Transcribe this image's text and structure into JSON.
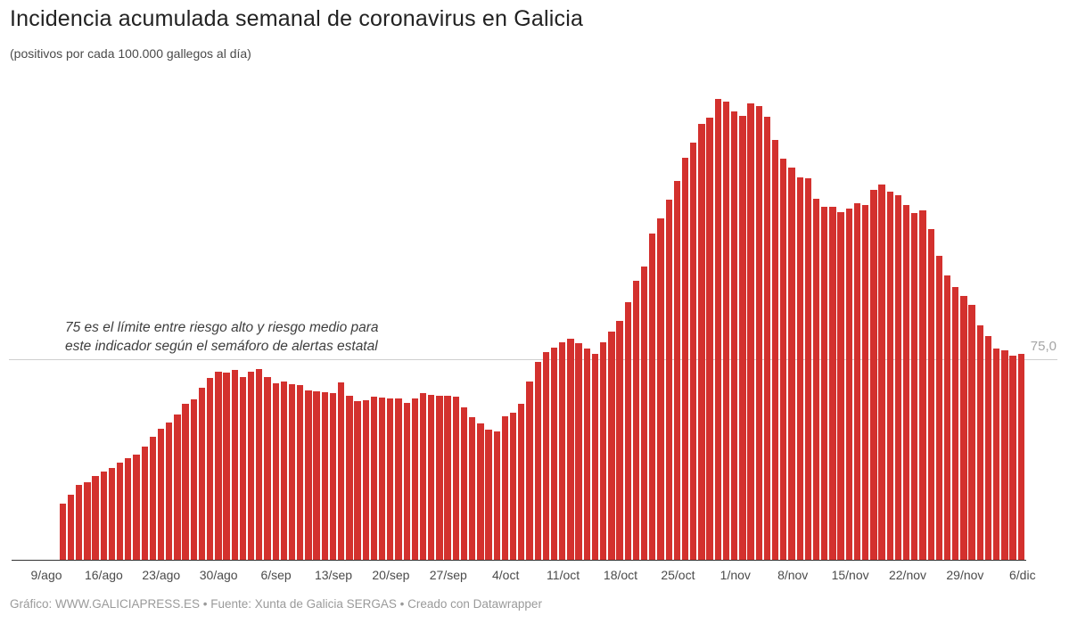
{
  "annotation": {
    "line1": "75 es el límite entre riesgo alto y riesgo medio para",
    "line2": "este indicador según el semáforo de alertas estatal"
  },
  "footer": {
    "text": "Gráfico: WWW.GALICIAPRESS.ES • Fuente: Xunta de Galicia SERGAS • Creado con Datawrapper"
  },
  "chart_data": {
    "type": "bar",
    "title": "Incidencia acumulada semanal de coronavirus en Galicia",
    "subtitle": "(positivos por cada 100.000 gallegos al día)",
    "xlabel": "",
    "ylabel": "",
    "ylim": [
      0,
      187
    ],
    "grid": "off",
    "legend": "none",
    "bar_color": "#d3312e",
    "reference_line": {
      "value": 75,
      "label": "75,0"
    },
    "x_tick_labels": [
      "9/ago",
      "16/ago",
      "23/ago",
      "30/ago",
      "6/sep",
      "13/sep",
      "20/sep",
      "27/sep",
      "4/oct",
      "11/oct",
      "18/oct",
      "25/oct",
      "1/nov",
      "8/nov",
      "15/nov",
      "22/nov",
      "29/nov",
      "6/dic"
    ],
    "categories": [
      "9/ago",
      "10/ago",
      "11/ago",
      "12/ago",
      "13/ago",
      "14/ago",
      "15/ago",
      "16/ago",
      "17/ago",
      "18/ago",
      "19/ago",
      "20/ago",
      "21/ago",
      "22/ago",
      "23/ago",
      "24/ago",
      "25/ago",
      "26/ago",
      "27/ago",
      "28/ago",
      "29/ago",
      "30/ago",
      "31/ago",
      "1/sep",
      "2/sep",
      "3/sep",
      "4/sep",
      "5/sep",
      "6/sep",
      "7/sep",
      "8/sep",
      "9/sep",
      "10/sep",
      "11/sep",
      "12/sep",
      "13/sep",
      "14/sep",
      "15/sep",
      "16/sep",
      "17/sep",
      "18/sep",
      "19/sep",
      "20/sep",
      "21/sep",
      "22/sep",
      "23/sep",
      "24/sep",
      "25/sep",
      "26/sep",
      "27/sep",
      "28/sep",
      "29/sep",
      "30/sep",
      "1/oct",
      "2/oct",
      "3/oct",
      "4/oct",
      "5/oct",
      "6/oct",
      "7/oct",
      "8/oct",
      "9/oct",
      "10/oct",
      "11/oct",
      "12/oct",
      "13/oct",
      "14/oct",
      "15/oct",
      "16/oct",
      "17/oct",
      "18/oct",
      "19/oct",
      "20/oct",
      "21/oct",
      "22/oct",
      "23/oct",
      "24/oct",
      "25/oct",
      "26/oct",
      "27/oct",
      "28/oct",
      "29/oct",
      "30/oct",
      "31/oct",
      "1/nov",
      "2/nov",
      "3/nov",
      "4/nov",
      "5/nov",
      "6/nov",
      "7/nov",
      "8/nov",
      "9/nov",
      "10/nov",
      "11/nov",
      "12/nov",
      "13/nov",
      "14/nov",
      "15/nov",
      "16/nov",
      "17/nov",
      "18/nov",
      "19/nov",
      "20/nov",
      "21/nov",
      "22/nov",
      "23/nov",
      "24/nov",
      "25/nov",
      "26/nov",
      "27/nov",
      "28/nov",
      "29/nov",
      "30/nov",
      "1/dic",
      "2/dic",
      "3/dic",
      "4/dic",
      "5/dic",
      "6/dic"
    ],
    "values": [
      null,
      null,
      21.0,
      24.5,
      28.0,
      29.0,
      31.5,
      33.0,
      34.5,
      36.5,
      38.0,
      39.5,
      42.5,
      46.0,
      49.0,
      51.5,
      54.5,
      58.5,
      60.0,
      64.5,
      68.0,
      70.5,
      70.0,
      71.0,
      68.5,
      70.5,
      71.3,
      68.5,
      66.0,
      66.7,
      65.7,
      65.4,
      63.5,
      63.0,
      62.7,
      62.5,
      66.3,
      61.5,
      59.4,
      59.7,
      61.1,
      60.8,
      60.5,
      60.2,
      58.8,
      60.5,
      62.3,
      61.8,
      61.3,
      61.2,
      61.0,
      57.0,
      53.5,
      50.9,
      48.6,
      48.1,
      53.8,
      55.1,
      58.5,
      66.6,
      73.9,
      77.6,
      79.5,
      81.4,
      82.8,
      81.0,
      79.0,
      76.9,
      81.5,
      85.2,
      89.3,
      96.5,
      104.2,
      109.8,
      121.9,
      127.8,
      134.6,
      141.6,
      150.5,
      156.0,
      163.1,
      165.3,
      172.2,
      171.4,
      167.8,
      165.9,
      170.6,
      169.8,
      165.6,
      157.0,
      149.9,
      146.8,
      143.0,
      142.6,
      134.9,
      132.1,
      132.1,
      130.0,
      131.3,
      133.2,
      132.8,
      138.4,
      140.5,
      137.6,
      136.4,
      132.6,
      129.8,
      130.8,
      123.6,
      113.8,
      106.3,
      101.9,
      98.6,
      95.2,
      87.6,
      83.7,
      79.1,
      78.3,
      76.2,
      77.1
    ]
  }
}
